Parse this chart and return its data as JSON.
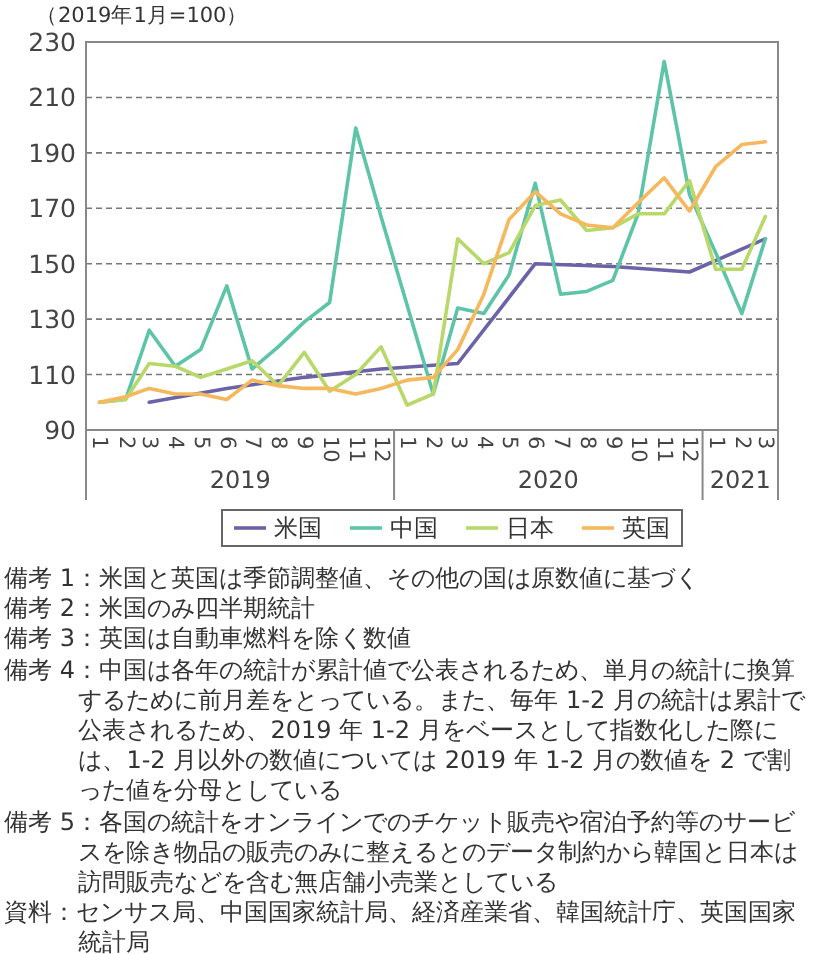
{
  "chart_data": {
    "type": "line",
    "ylabel": "（2019年1月=100）",
    "x": [
      "2019-01",
      "2019-02",
      "2019-03",
      "2019-04",
      "2019-05",
      "2019-06",
      "2019-07",
      "2019-08",
      "2019-09",
      "2019-10",
      "2019-11",
      "2019-12",
      "2020-01",
      "2020-02",
      "2020-03",
      "2020-04",
      "2020-05",
      "2020-06",
      "2020-07",
      "2020-08",
      "2020-09",
      "2020-10",
      "2020-11",
      "2020-12",
      "2021-01",
      "2021-02",
      "2021-03"
    ],
    "xlim": [
      "2018-12-16",
      "2021-03-16"
    ],
    "xticks": [
      {
        "value": "2019-01",
        "label": "1"
      },
      {
        "value": "2019-02",
        "label": "2"
      },
      {
        "value": "2019-03",
        "label": "3"
      },
      {
        "value": "2019-04",
        "label": "4"
      },
      {
        "value": "2019-05",
        "label": "5"
      },
      {
        "value": "2019-06",
        "label": "6"
      },
      {
        "value": "2019-07",
        "label": "7"
      },
      {
        "value": "2019-08",
        "label": "8"
      },
      {
        "value": "2019-09",
        "label": "9"
      },
      {
        "value": "2019-10",
        "label": "10"
      },
      {
        "value": "2019-11",
        "label": "11"
      },
      {
        "value": "2019-12",
        "label": "12"
      },
      {
        "value": "2020-01",
        "label": "1"
      },
      {
        "value": "2020-02",
        "label": "2"
      },
      {
        "value": "2020-03",
        "label": "3"
      },
      {
        "value": "2020-04",
        "label": "4"
      },
      {
        "value": "2020-05",
        "label": "5"
      },
      {
        "value": "2020-06",
        "label": "6"
      },
      {
        "value": "2020-07",
        "label": "7"
      },
      {
        "value": "2020-08",
        "label": "8"
      },
      {
        "value": "2020-09",
        "label": "9"
      },
      {
        "value": "2020-10",
        "label": "10"
      },
      {
        "value": "2020-11",
        "label": "11"
      },
      {
        "value": "2020-12",
        "label": "12"
      },
      {
        "value": "2021-01",
        "label": "1"
      },
      {
        "value": "2021-02",
        "label": "2"
      },
      {
        "value": "2021-03",
        "label": "3"
      }
    ],
    "ylim": [
      90,
      230
    ],
    "yticks": [
      90,
      110,
      130,
      150,
      170,
      190,
      210,
      230
    ],
    "grid": "y",
    "legend": "bottom",
    "marker": "none",
    "line_style": "solid",
    "series": [
      {
        "name": "米国",
        "color": "#6b63a8",
        "x": [
          "2019-03",
          "2019-06",
          "2019-09",
          "2019-12",
          "2020-03",
          "2020-06",
          "2020-09",
          "2020-12",
          "2021-03"
        ],
        "values": [
          100,
          105,
          109,
          112,
          114,
          150,
          149,
          147,
          159
        ]
      },
      {
        "name": "中国",
        "color": "#5ec4a8",
        "values": [
          100,
          101,
          126,
          113,
          119,
          142,
          112,
          120,
          129,
          136,
          199,
          167,
          135,
          103,
          134,
          132,
          146,
          179,
          139,
          140,
          144,
          168,
          223,
          175,
          154,
          132,
          159
        ]
      },
      {
        "name": "日本",
        "color": "#b8d96a",
        "values": [
          100,
          101,
          114,
          113,
          109,
          112,
          115,
          106,
          118,
          104,
          110,
          120,
          99,
          103,
          159,
          150,
          154,
          171,
          173,
          162,
          163,
          168,
          168,
          180,
          148,
          148,
          167
        ]
      },
      {
        "name": "英国",
        "color": "#f5b85c",
        "values": [
          100,
          102,
          105,
          103,
          103,
          101,
          108,
          106,
          105,
          105,
          103,
          105,
          108,
          109,
          119,
          139,
          166,
          176,
          168,
          164,
          163,
          172,
          181,
          169,
          185,
          193,
          194
        ]
      }
    ],
    "annotations": [
      "2019",
      "2020",
      "2021",
      "備考 1：米国と英国は季節調整値、その他の国は原数値に基づく",
      "備考 2：米国のみ四半期統計",
      "備考 3：英国は自動車燃料を除く数値",
      "備考 4：中国は各年の統計が累計値で公表されるため、単月の統計に換算するために前月差をとっている。また、毎年 1-2 月の統計は累計で公表されるため、2019 年 1-2 月をベースとして指数化した際には、1-2 月以外の数値については 2019 年 1-2 月の数値を 2 で割った値を分母としている",
      "備考 5：各国の統計をオンラインでのチケット販売や宿泊予約等のサービスを除き物品の販売のみに整えるとのデータ制約から韓国と日本は訪問販売などを含む無店舗小売業としている",
      "資料：センサス局、中国国家統計局、経済産業省、韓国統計庁、英国国家統計局"
    ]
  }
}
